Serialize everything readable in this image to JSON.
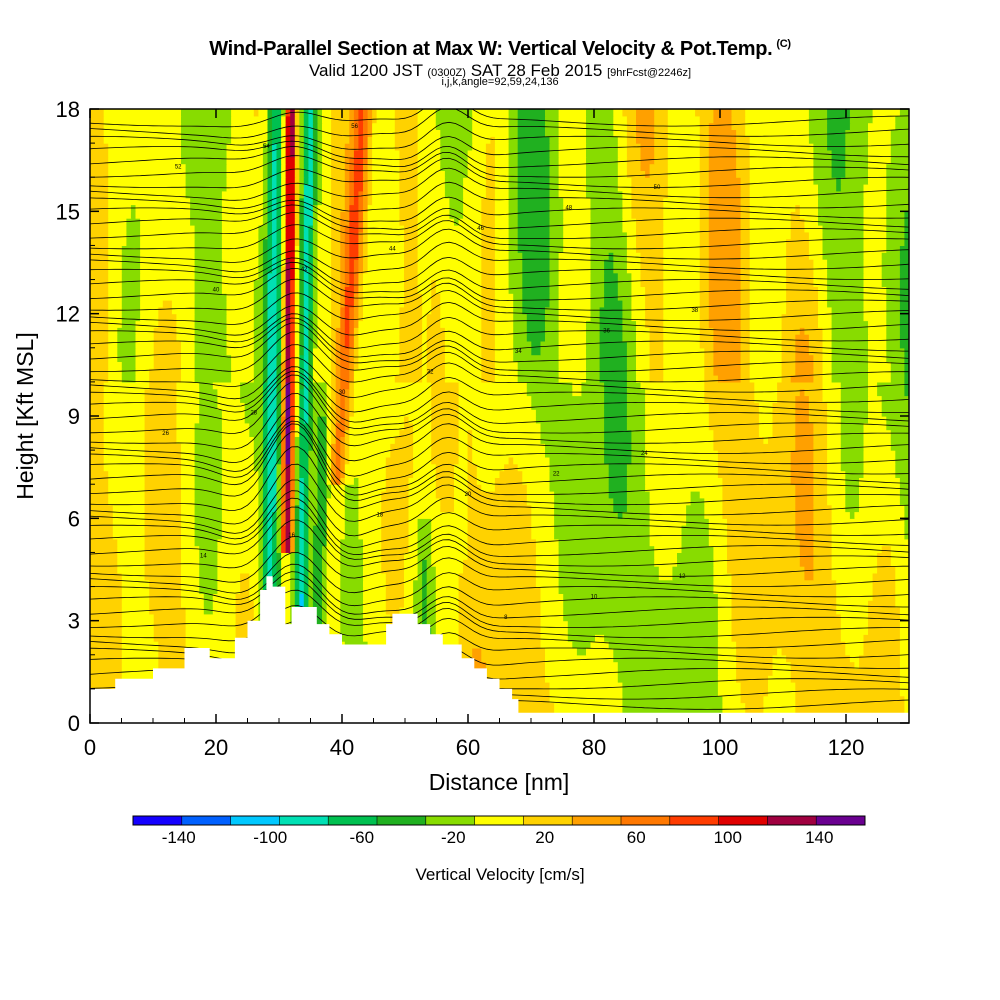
{
  "title": {
    "main": "Wind-Parallel Section at Max W: Vertical Velocity & Pot.Temp.",
    "mark": "(C)",
    "valid_prefix": "Valid 1200 JST",
    "valid_zulu": "(0300Z)",
    "valid_date": "SAT 28 Feb 2015",
    "forecast": "[9hrFcst@2246z]",
    "indices": "i,j,k,angle=92,59,24,136"
  },
  "chart_data": {
    "type": "heatmap",
    "xlabel": "Distance [nm]",
    "ylabel": "Height [Kft MSL]",
    "xlim": [
      0,
      130
    ],
    "ylim": [
      0,
      18
    ],
    "x_ticks": [
      "0",
      "20",
      "40",
      "60",
      "80",
      "100",
      "120"
    ],
    "x_tick_values": [
      0,
      20,
      40,
      60,
      80,
      100,
      120
    ],
    "y_ticks": [
      "0",
      "3",
      "6",
      "9",
      "12",
      "15",
      "18"
    ],
    "y_tick_values": [
      0,
      3,
      6,
      9,
      12,
      15,
      18
    ],
    "colorbar": {
      "label": "Vertical Velocity [cm/s]",
      "tick_labels": [
        "-140",
        "-100",
        "-60",
        "-20",
        "20",
        "60",
        "100",
        "140"
      ],
      "tick_values": [
        -140,
        -100,
        -60,
        -20,
        20,
        60,
        100,
        140
      ],
      "range": [
        -160,
        160
      ],
      "colors": [
        "#1400ff",
        "#0060ff",
        "#00c8ff",
        "#00e0b4",
        "#00c050",
        "#20b020",
        "#88dc00",
        "#ffff00",
        "#ffd200",
        "#ffa000",
        "#ff7800",
        "#ff3c00",
        "#e00000",
        "#a00040",
        "#6a0090"
      ]
    },
    "terrain_kft": [
      [
        0,
        1.0
      ],
      [
        4,
        1.0
      ],
      [
        4,
        1.3
      ],
      [
        10,
        1.3
      ],
      [
        10,
        1.6
      ],
      [
        15,
        1.6
      ],
      [
        15,
        2.2
      ],
      [
        19,
        2.2
      ],
      [
        19,
        1.9
      ],
      [
        23,
        1.9
      ],
      [
        23,
        2.5
      ],
      [
        25,
        2.5
      ],
      [
        25,
        3.0
      ],
      [
        27,
        3.0
      ],
      [
        27,
        3.9
      ],
      [
        28,
        3.9
      ],
      [
        28,
        4.3
      ],
      [
        29,
        4.3
      ],
      [
        29,
        4.0
      ],
      [
        31,
        4.0
      ],
      [
        31,
        2.9
      ],
      [
        32,
        2.9
      ],
      [
        32,
        3.4
      ],
      [
        36,
        3.4
      ],
      [
        36,
        2.9
      ],
      [
        38,
        2.9
      ],
      [
        38,
        2.6
      ],
      [
        40,
        2.6
      ],
      [
        40,
        2.3
      ],
      [
        47,
        2.3
      ],
      [
        47,
        2.9
      ],
      [
        48,
        2.9
      ],
      [
        48,
        3.2
      ],
      [
        52,
        3.2
      ],
      [
        52,
        2.9
      ],
      [
        54,
        2.9
      ],
      [
        54,
        2.6
      ],
      [
        56,
        2.6
      ],
      [
        56,
        2.3
      ],
      [
        59,
        2.3
      ],
      [
        59,
        1.9
      ],
      [
        61,
        1.9
      ],
      [
        61,
        1.6
      ],
      [
        63,
        1.6
      ],
      [
        63,
        1.3
      ],
      [
        65,
        1.3
      ],
      [
        65,
        1.0
      ],
      [
        67,
        1.0
      ],
      [
        67,
        0.7
      ],
      [
        68,
        0.7
      ],
      [
        68,
        0.3
      ],
      [
        130,
        0.3
      ]
    ],
    "theta_label_C": [
      "0",
      "2",
      "4",
      "6",
      "8",
      "10",
      "12",
      "14",
      "16",
      "18",
      "20",
      "22",
      "24",
      "26",
      "28",
      "30",
      "32",
      "34",
      "36",
      "38",
      "40",
      "42",
      "44",
      "46",
      "48",
      "50",
      "52",
      "54",
      "56",
      "58",
      "60"
    ],
    "grid": false
  }
}
